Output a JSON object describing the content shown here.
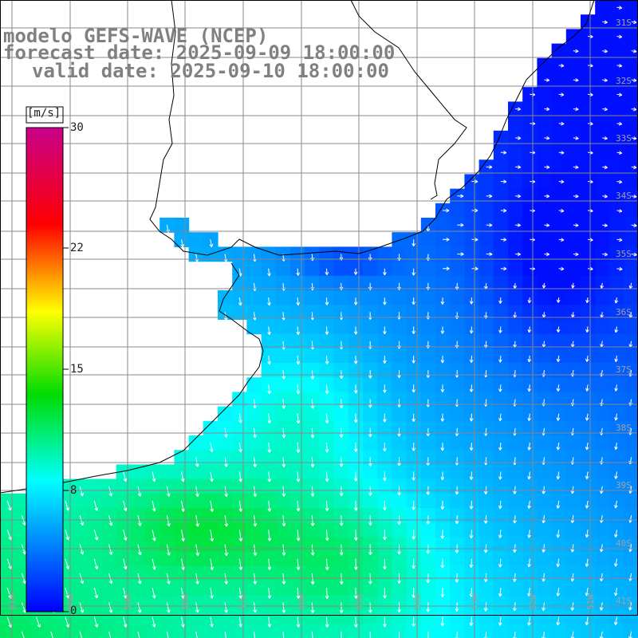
{
  "title": {
    "model": "modelo GEFS-WAVE (NCEP)",
    "forecast": "forecast date: 2025-09-09 18:00:00",
    "valid": "valid date: 2025-09-10 18:00:00"
  },
  "colorbar": {
    "unit": "[m/s]",
    "labels": [
      "30",
      "22",
      "15",
      "8",
      "0"
    ],
    "range": [
      0,
      30
    ]
  },
  "grid": {
    "lat_labels": [
      "31S",
      "32S",
      "33S",
      "34S",
      "35S",
      "36S",
      "37S",
      "38S",
      "39S",
      "40S",
      "41S"
    ],
    "lon_labels": [
      "61W",
      "60W",
      "59W",
      "58W",
      "57W",
      "56W",
      "55W",
      "54W",
      "53W",
      "52W",
      "51W"
    ]
  },
  "colors": {
    "land": "#ffffff",
    "gridline": "#888888",
    "coast": "#000000",
    "arrows": "#ffffff"
  }
}
